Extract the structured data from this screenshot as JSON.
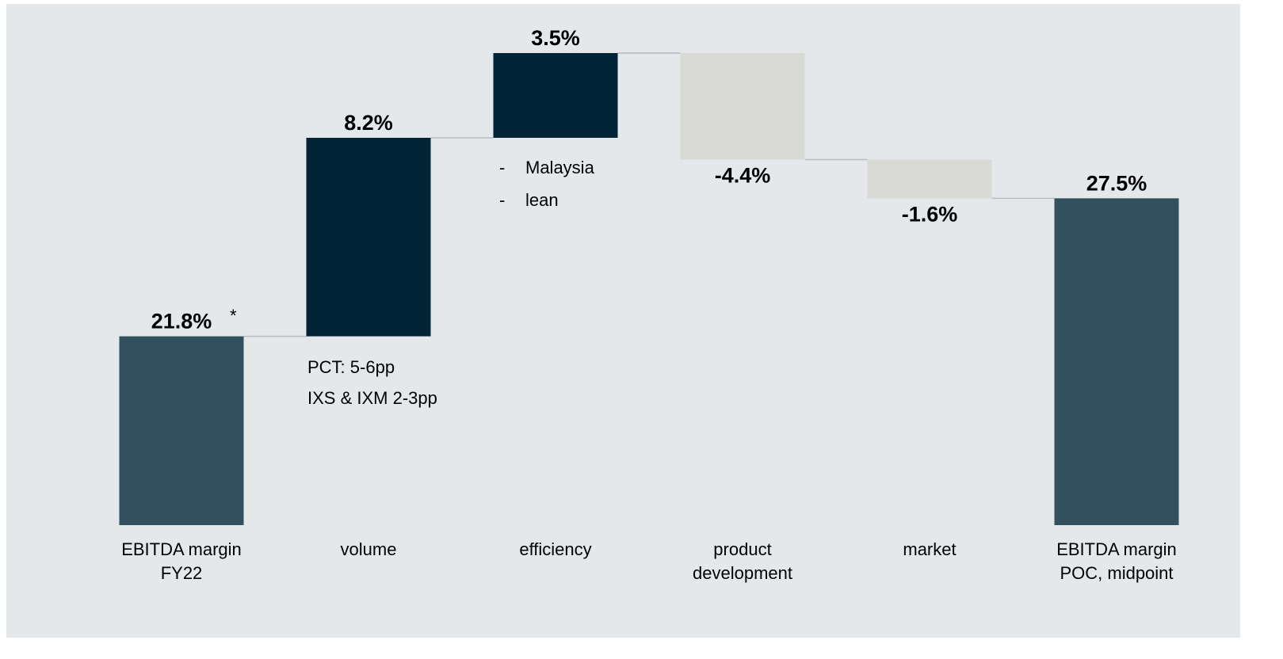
{
  "chart_data": {
    "type": "waterfall",
    "categories": [
      "EBITDA margin\nFY22",
      "volume",
      "efficiency",
      "product\ndevelopment",
      "market",
      "EBITDA margin\nPOC, midpoint"
    ],
    "measures": [
      "total",
      "relative",
      "relative",
      "relative",
      "relative",
      "total"
    ],
    "values": [
      21.8,
      8.2,
      3.5,
      -4.4,
      -1.6,
      27.5
    ],
    "value_labels": [
      "21.8%",
      "8.2%",
      "3.5%",
      "-4.4%",
      "-1.6%",
      "27.5%"
    ],
    "colors": {
      "total": "#33505f",
      "increase": "#012537",
      "decrease": "#d9dad5"
    },
    "ylim": [
      14,
      33.5
    ],
    "annotations": {
      "footnote_mark": "*",
      "volume_notes": [
        "PCT: 5-6pp",
        "IXS & IXM 2-3pp"
      ],
      "efficiency_notes": [
        "Malaysia",
        "lean"
      ]
    }
  }
}
